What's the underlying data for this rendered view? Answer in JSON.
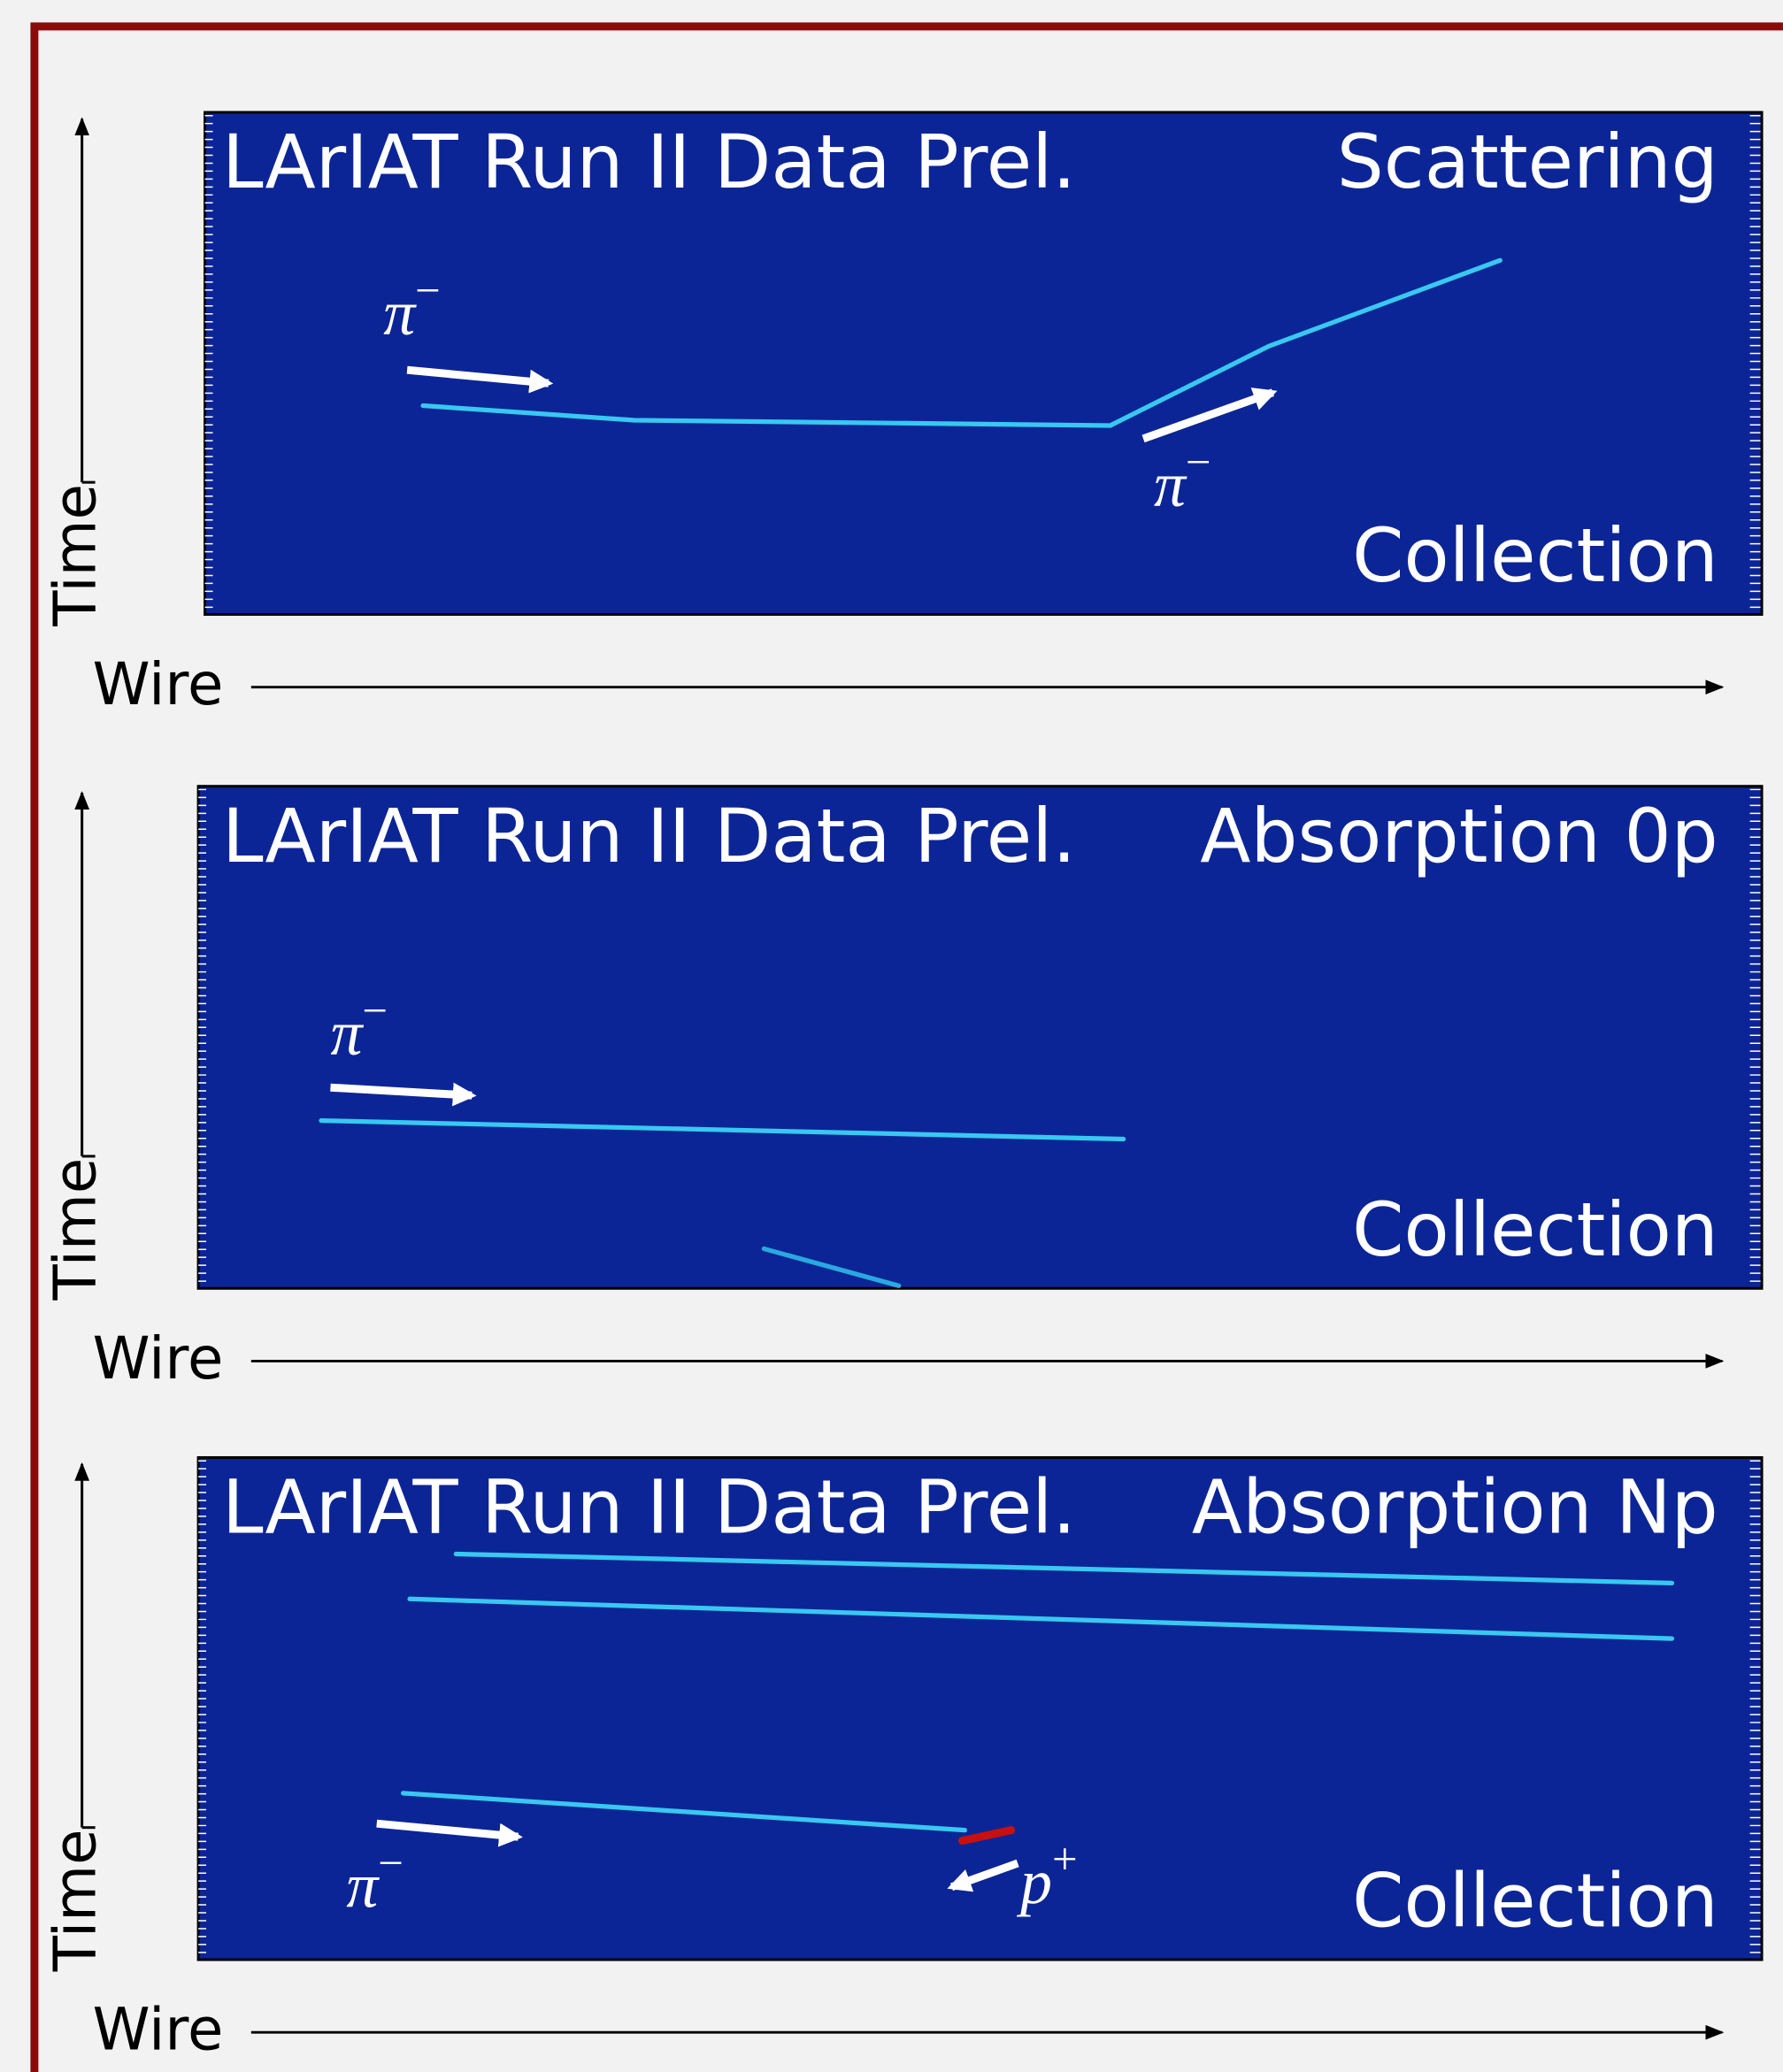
{
  "panels": [
    {
      "header": "LArIAT Run II Data Prel.",
      "event": "Scattering",
      "plane": "Collection",
      "y_axis": "Time",
      "x_axis": "Wire",
      "labels": [
        {
          "symbol": "π",
          "charge": "−"
        },
        {
          "symbol": "π",
          "charge": "−"
        }
      ]
    },
    {
      "header": "LArIAT Run II Data Prel.",
      "event": "Absorption 0p",
      "plane": "Collection",
      "y_axis": "Time",
      "x_axis": "Wire",
      "labels": [
        {
          "symbol": "π",
          "charge": "−"
        }
      ]
    },
    {
      "header": "LArIAT Run II Data Prel.",
      "event": "Absorption Np",
      "plane": "Collection",
      "y_axis": "Time",
      "x_axis": "Wire",
      "labels": [
        {
          "symbol": "π",
          "charge": "−"
        },
        {
          "symbol": "p",
          "charge": "+"
        }
      ]
    }
  ]
}
